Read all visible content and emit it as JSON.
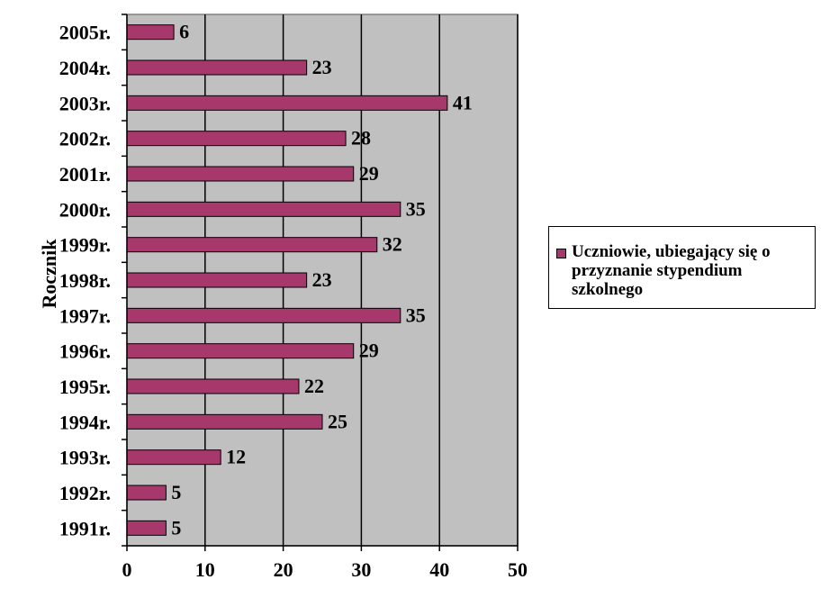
{
  "chart_data": {
    "type": "bar",
    "orientation": "horizontal",
    "categories": [
      "1991r.",
      "1992r.",
      "1993r.",
      "1994r.",
      "1995r.",
      "1996r.",
      "1997r.",
      "1998r.",
      "1999r.",
      "2000r.",
      "2001r.",
      "2002r.",
      "2003r.",
      "2004r.",
      "2005r."
    ],
    "series": [
      {
        "name": "Uczniowie, ubiegający się o przyznanie stypendium szkolnego",
        "values": [
          5,
          5,
          12,
          25,
          22,
          29,
          35,
          23,
          32,
          35,
          29,
          28,
          41,
          23,
          6
        ]
      }
    ],
    "ylabel": "Rocznik",
    "xlim": [
      0,
      50
    ],
    "xticks": [
      0,
      10,
      20,
      30,
      40,
      50
    ],
    "grid": true,
    "data_labels": true,
    "legend_position": "right",
    "colors": {
      "bar": "#A7386C",
      "plot_background": "#C0C0C0",
      "gridline": "#000000"
    }
  }
}
